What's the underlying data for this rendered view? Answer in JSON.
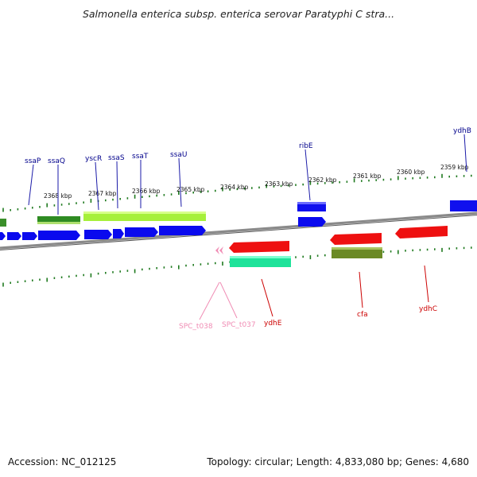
{
  "title": "Salmonella enterica subsp. enterica serovar Paratyphi C stra...",
  "footer": {
    "accession": "Accession: NC_012125",
    "topology": "Topology: circular; Length: 4,833,080 bp; Genes: 4,680"
  },
  "colors": {
    "plus_cds": "#0000ee",
    "minus_cds": "#ee0000",
    "gene_label_plus": "#00008b",
    "gene_label_minus": "#cc0000",
    "rna_label": "#f08cb4",
    "backbone": "#8a8a8a",
    "ticks": "#1f7a1f"
  },
  "scale": {
    "unit": "kbp",
    "labels": [
      "2368 kbp",
      "2367 kbp",
      "2366 kbp",
      "2365 kbp",
      "2364 kbp",
      "2363 kbp",
      "2362 kbp",
      "2361 kbp",
      "2360 kbp",
      "2359 kbp"
    ]
  },
  "genes_plus_labels": [
    "ssaP",
    "ssaQ",
    "yscR",
    "ssaS",
    "ssaT",
    "ssaU",
    "ribE",
    "ydhB"
  ],
  "genes_minus_labels": [
    "ydhE",
    "cfa",
    "ydhC"
  ],
  "rna_labels": [
    "SPC_t038",
    "SPC_t037"
  ]
}
